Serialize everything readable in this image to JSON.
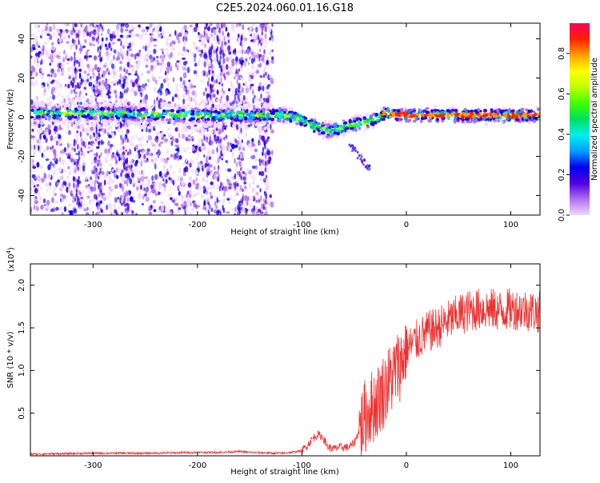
{
  "title": "C2E5.2024.060.01.16.G18",
  "chart_data": [
    {
      "type": "heatmap",
      "xlabel": "Height of straight line (km)",
      "ylabel": "Frequency (Hz)",
      "xlim": [
        -360,
        128
      ],
      "ylim": [
        -50,
        48
      ],
      "x_ticks": [
        -300,
        -200,
        -100,
        0,
        100
      ],
      "y_ticks": [
        -40,
        -20,
        0,
        20,
        40
      ],
      "colorbar": {
        "label": "Normalized spectral amplitude",
        "range": [
          0,
          0.95
        ],
        "ticks": [
          "0.0",
          "0.2",
          "0.4",
          "0.6",
          "0.8"
        ],
        "colors": [
          "#f0d8f8",
          "#b070f0",
          "#5000e0",
          "#0000f0",
          "#00a0ff",
          "#00f0f0",
          "#00e060",
          "#40ff00",
          "#c0ff00",
          "#ffff00",
          "#ffa000",
          "#ff2000",
          "#ff0060"
        ]
      },
      "ridge_freq": {
        "x": [
          -360,
          -300,
          -250,
          -200,
          -150,
          -120,
          -105,
          -95,
          -85,
          -75,
          -65,
          -55,
          -45,
          -35,
          -25,
          -20,
          -10,
          0,
          50,
          128
        ],
        "freq": [
          2,
          2,
          1.5,
          1,
          1,
          1,
          0,
          -3,
          -5,
          -7,
          -6,
          -4,
          -3,
          -2,
          0,
          2,
          1,
          1,
          1,
          1
        ]
      }
    },
    {
      "type": "line",
      "xlabel": "Height of straight line (km)",
      "ylabel": "SNR (10 * v/v)",
      "y_scale_label": "(x10",
      "y_scale_exp": "4",
      "y_scale_close": ")",
      "xlim": [
        -360,
        128
      ],
      "ylim": [
        0,
        2.25
      ],
      "x_ticks": [
        -300,
        -200,
        -100,
        0,
        100
      ],
      "y_ticks": [
        "0.5",
        "1.0",
        "1.5",
        "2.0"
      ],
      "series": [
        {
          "color": "#f03030",
          "x": [
            -360,
            -300,
            -250,
            -200,
            -180,
            -160,
            -150,
            -120,
            -110,
            -100,
            -95,
            -90,
            -85,
            -80,
            -75,
            -70,
            -65,
            -60,
            -55,
            -50,
            -45,
            -40,
            -35,
            -30,
            -25,
            -20,
            -15,
            -10,
            -5,
            0,
            10,
            20,
            30,
            40,
            50,
            60,
            70,
            80,
            90,
            100,
            110,
            120,
            128
          ],
          "snr": [
            0.02,
            0.03,
            0.03,
            0.04,
            0.04,
            0.05,
            0.04,
            0.03,
            0.04,
            0.06,
            0.12,
            0.2,
            0.25,
            0.22,
            0.1,
            0.08,
            0.1,
            0.1,
            0.1,
            0.15,
            0.3,
            0.45,
            0.55,
            0.6,
            0.7,
            0.8,
            0.9,
            1.0,
            1.1,
            1.25,
            1.35,
            1.45,
            1.5,
            1.58,
            1.65,
            1.7,
            1.72,
            1.72,
            1.7,
            1.72,
            1.72,
            1.7,
            1.68
          ]
        }
      ]
    }
  ]
}
